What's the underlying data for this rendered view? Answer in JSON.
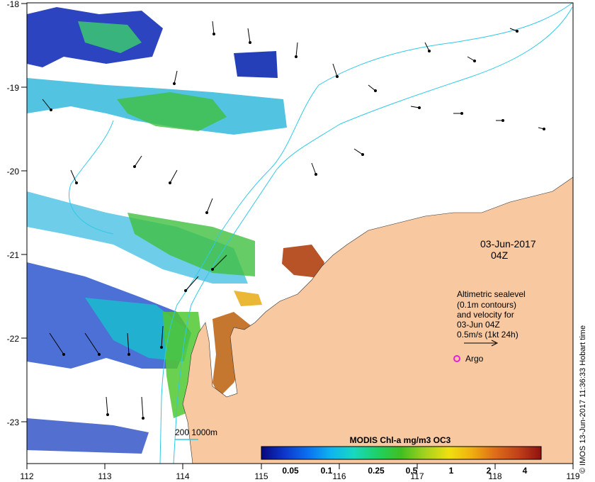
{
  "map": {
    "x_ticks": [
      "112",
      "113",
      "114",
      "115",
      "116",
      "117",
      "118",
      "119"
    ],
    "y_ticks": [
      "-18",
      "-19",
      "-20",
      "-21",
      "-22",
      "-23"
    ],
    "date_line1": "03-Jun-2017",
    "date_line2": "04Z",
    "legend_lines": [
      "Altimetric sealevel",
      "(0.1m contours)",
      "and velocity for",
      "03-Jun 04Z",
      "0.5m/s (1kt 24h)"
    ],
    "argo_label": "Argo",
    "bathy_label": "200  1000m",
    "colorbar": {
      "title": "MODIS Chl-a mg/m3 OC3",
      "ticks": [
        "0.05",
        "0.1",
        "0.25",
        "0.5",
        "1",
        "2",
        "4"
      ],
      "colors": [
        "#08087e",
        "#0d35c8",
        "#0a74f0",
        "#10b4f0",
        "#18d8c0",
        "#20d060",
        "#40c020",
        "#a0d020",
        "#f0e010",
        "#f0b010",
        "#e07018",
        "#c04018",
        "#901010"
      ]
    },
    "credit": "© IMOS 13-Jun-2017 11:36:33 Hobart time",
    "colors": {
      "land": "#f8c8a0",
      "contour": "#30c8e8",
      "argo": "#e020e0",
      "frame": "#000000"
    }
  }
}
